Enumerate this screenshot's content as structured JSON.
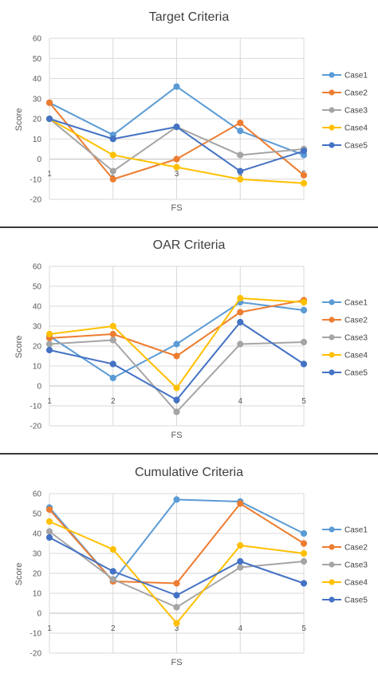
{
  "chart_data": [
    {
      "type": "line",
      "title": "Target Criteria",
      "xlabel": "FS",
      "ylabel": "Score",
      "x": [
        1,
        2,
        3,
        4,
        5
      ],
      "xticks": [
        "1",
        "2",
        "3",
        "4",
        "5"
      ],
      "yticks": [
        "60",
        "50",
        "40",
        "30",
        "20",
        "10",
        "0",
        "-10",
        "-20"
      ],
      "ylim": [
        -20,
        60
      ],
      "grid": true,
      "legend": "right",
      "series": [
        {
          "name": "Case1",
          "color": "#5B9BD5",
          "values": [
            28,
            12,
            36,
            14,
            2
          ]
        },
        {
          "name": "Case2",
          "color": "#ED7D31",
          "values": [
            28,
            -10,
            0,
            18,
            -8
          ]
        },
        {
          "name": "Case3",
          "color": "#A5A5A5",
          "values": [
            20,
            -6,
            16,
            2,
            5
          ]
        },
        {
          "name": "Case4",
          "color": "#FFC000",
          "values": [
            20,
            2,
            -4,
            -10,
            -12
          ]
        },
        {
          "name": "Case5",
          "color": "#4472C4",
          "values": [
            20,
            10,
            16,
            -6,
            4
          ]
        }
      ]
    },
    {
      "type": "line",
      "title": "OAR Criteria",
      "xlabel": "FS",
      "ylabel": "Score",
      "x": [
        1,
        2,
        3,
        4,
        5
      ],
      "xticks": [
        "1",
        "2",
        "3",
        "4",
        "5"
      ],
      "yticks": [
        "60",
        "50",
        "40",
        "30",
        "20",
        "10",
        "0",
        "-10",
        "-20"
      ],
      "ylim": [
        -20,
        60
      ],
      "grid": true,
      "legend": "right",
      "series": [
        {
          "name": "Case1",
          "color": "#5B9BD5",
          "values": [
            25,
            4,
            21,
            42,
            38
          ]
        },
        {
          "name": "Case2",
          "color": "#ED7D31",
          "values": [
            24,
            26,
            15,
            37,
            43
          ]
        },
        {
          "name": "Case3",
          "color": "#A5A5A5",
          "values": [
            21,
            23,
            -13,
            21,
            22
          ]
        },
        {
          "name": "Case4",
          "color": "#FFC000",
          "values": [
            26,
            30,
            -1,
            44,
            42
          ]
        },
        {
          "name": "Case5",
          "color": "#4472C4",
          "values": [
            18,
            11,
            -7,
            32,
            11
          ]
        }
      ]
    },
    {
      "type": "line",
      "title": "Cumulative Criteria",
      "xlabel": "FS",
      "ylabel": "Score",
      "x": [
        1,
        2,
        3,
        4,
        5
      ],
      "xticks": [
        "1",
        "2",
        "3",
        "4",
        "5"
      ],
      "yticks": [
        "60",
        "50",
        "40",
        "30",
        "20",
        "10",
        "0",
        "-10",
        "-20"
      ],
      "ylim": [
        -20,
        60
      ],
      "grid": true,
      "legend": "right",
      "series": [
        {
          "name": "Case1",
          "color": "#5B9BD5",
          "values": [
            53,
            16,
            57,
            56,
            40
          ]
        },
        {
          "name": "Case2",
          "color": "#ED7D31",
          "values": [
            52,
            16,
            15,
            55,
            35
          ]
        },
        {
          "name": "Case3",
          "color": "#A5A5A5",
          "values": [
            41,
            17,
            3,
            23,
            26
          ]
        },
        {
          "name": "Case4",
          "color": "#FFC000",
          "values": [
            46,
            32,
            -5,
            34,
            30
          ]
        },
        {
          "name": "Case5",
          "color": "#4472C4",
          "values": [
            38,
            21,
            9,
            26,
            15
          ]
        }
      ]
    }
  ]
}
